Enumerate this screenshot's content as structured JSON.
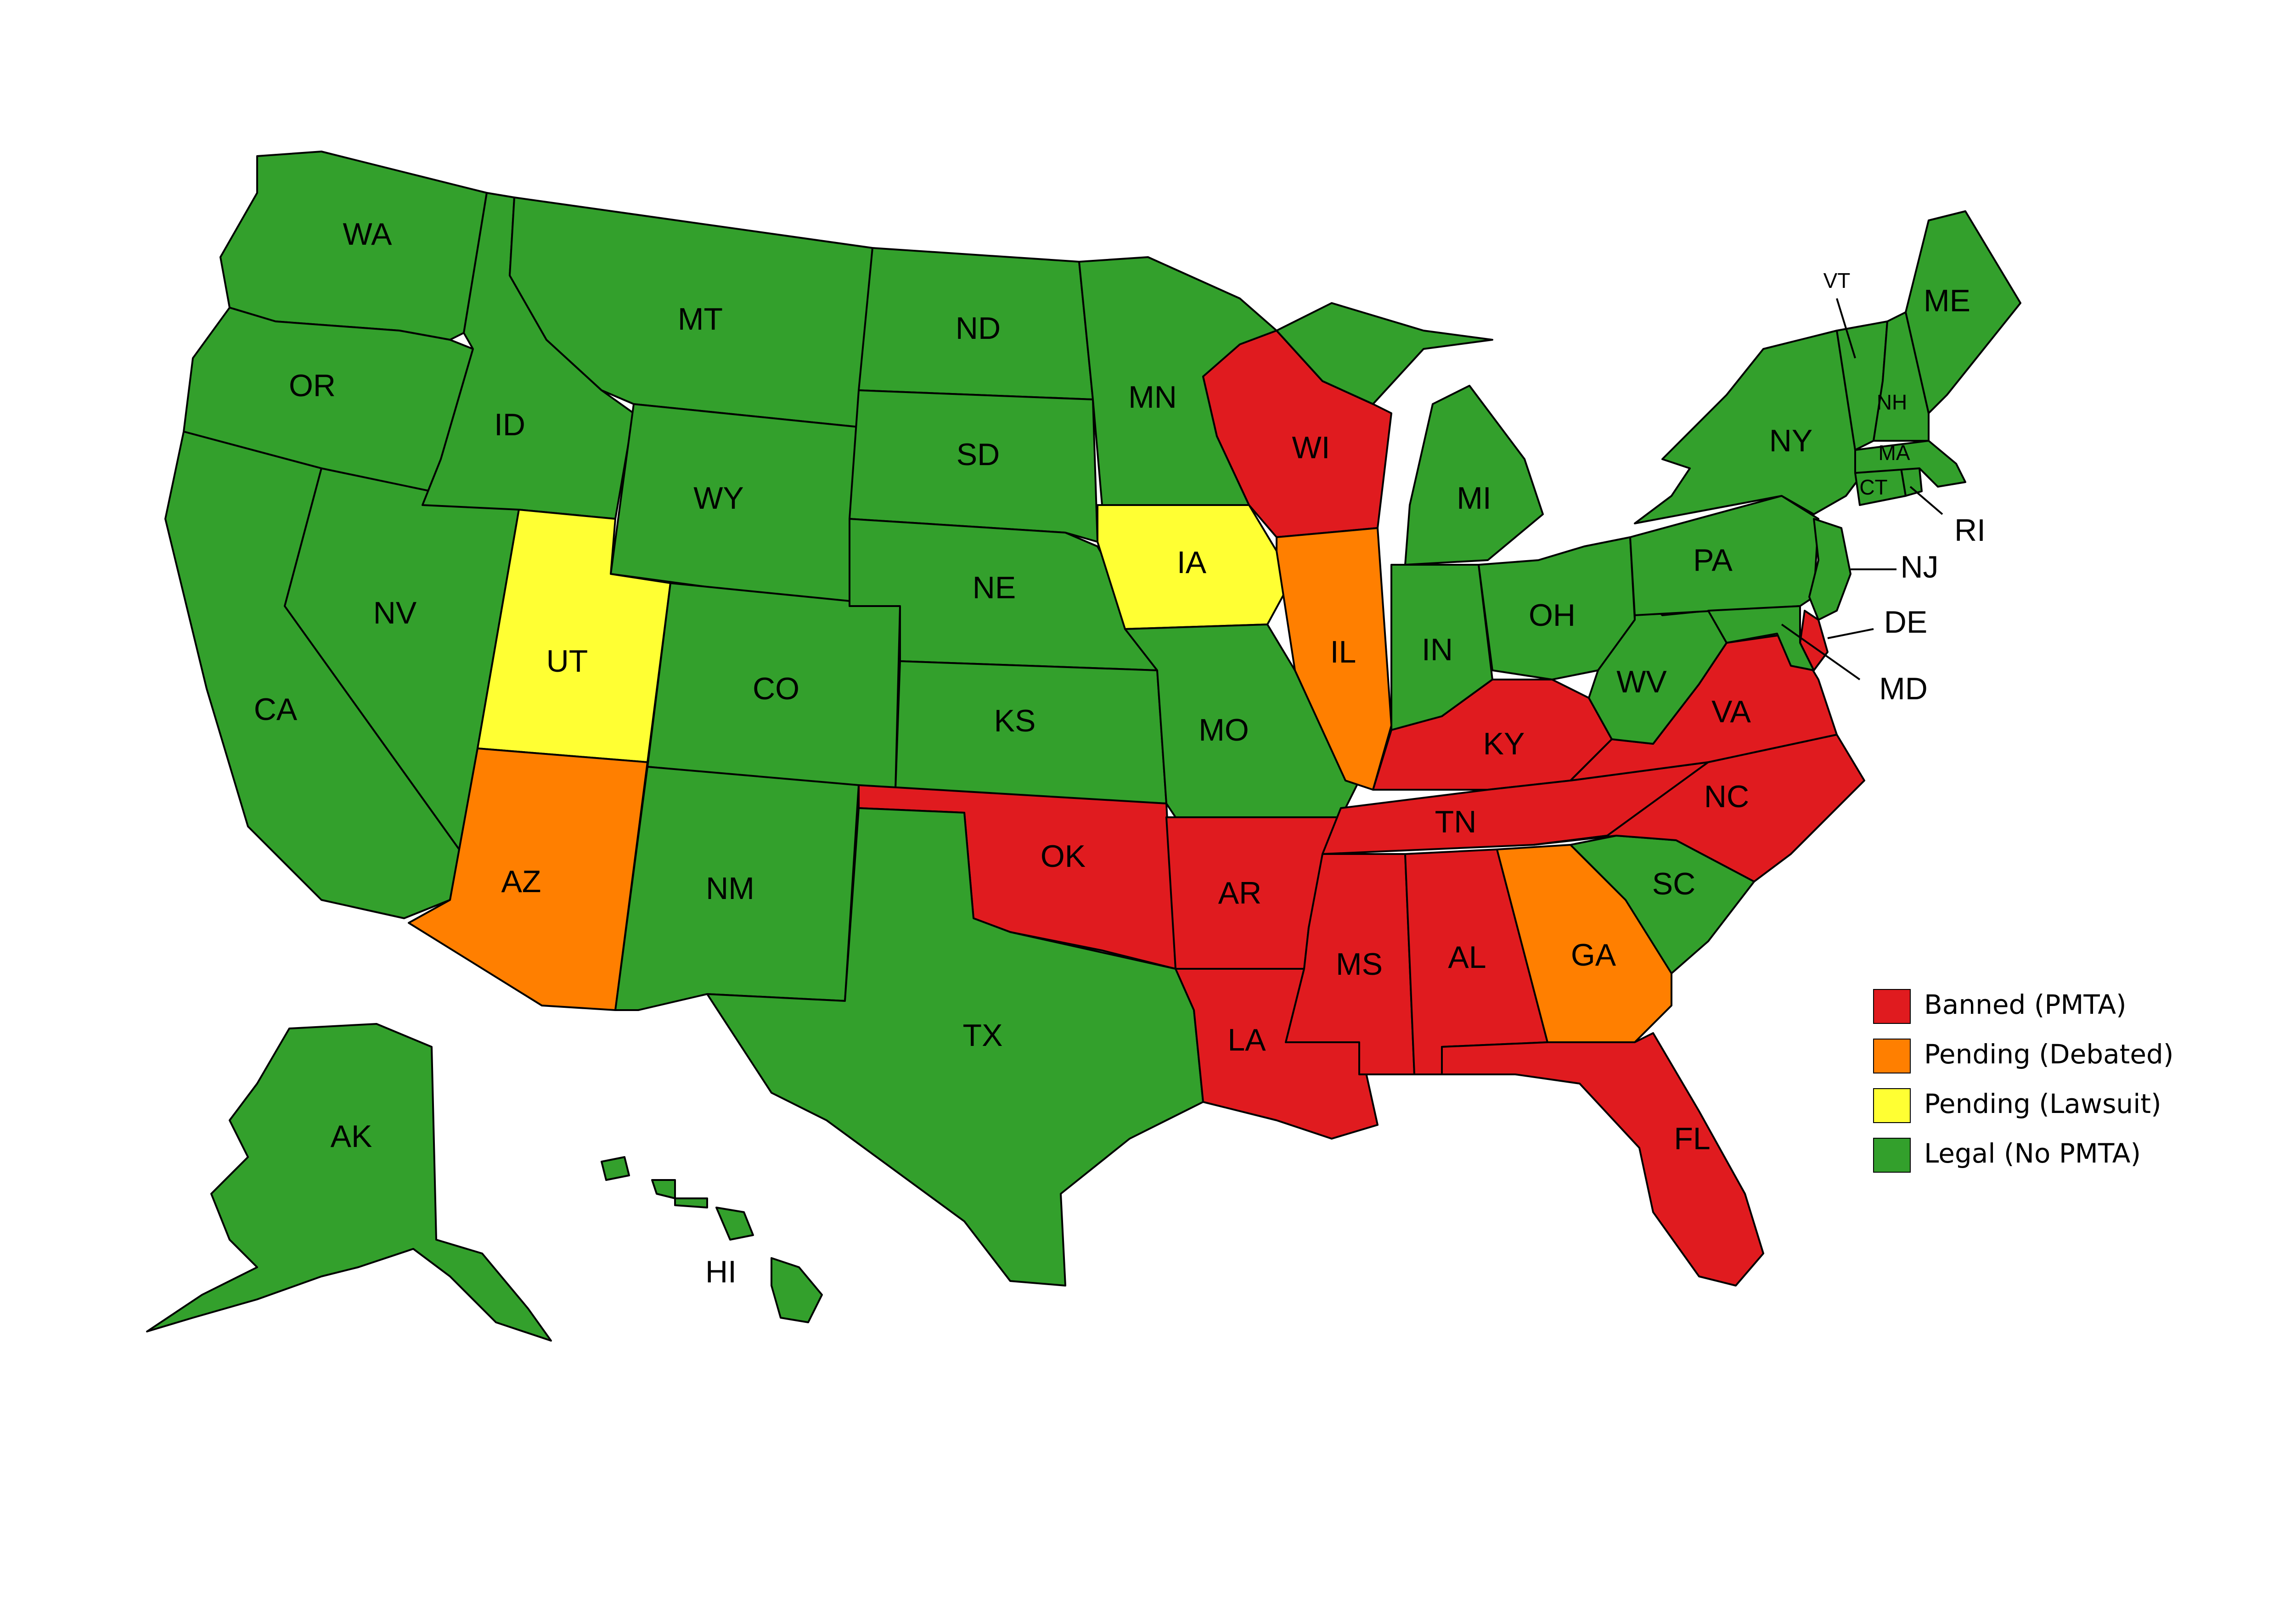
{
  "colors": {
    "banned": "#e01b1f",
    "debated": "#ff7f00",
    "lawsuit": "#ffff33",
    "legal": "#33a02c"
  },
  "legend": [
    {
      "key": "banned",
      "label": "Banned (PMTA)"
    },
    {
      "key": "debated",
      "label": "Pending (Debated)"
    },
    {
      "key": "lawsuit",
      "label": "Pending (Lawsuit)"
    },
    {
      "key": "legal",
      "label": "Legal (No PMTA)"
    }
  ],
  "states": {
    "WA": {
      "label": "WA",
      "status": "legal"
    },
    "OR": {
      "label": "OR",
      "status": "legal"
    },
    "CA": {
      "label": "CA",
      "status": "legal"
    },
    "NV": {
      "label": "NV",
      "status": "legal"
    },
    "ID": {
      "label": "ID",
      "status": "legal"
    },
    "MT": {
      "label": "MT",
      "status": "legal"
    },
    "WY": {
      "label": "WY",
      "status": "legal"
    },
    "UT": {
      "label": "UT",
      "status": "lawsuit"
    },
    "AZ": {
      "label": "AZ",
      "status": "debated"
    },
    "CO": {
      "label": "CO",
      "status": "legal"
    },
    "NM": {
      "label": "NM",
      "status": "legal"
    },
    "ND": {
      "label": "ND",
      "status": "legal"
    },
    "SD": {
      "label": "SD",
      "status": "legal"
    },
    "NE": {
      "label": "NE",
      "status": "legal"
    },
    "KS": {
      "label": "KS",
      "status": "legal"
    },
    "OK": {
      "label": "OK",
      "status": "banned"
    },
    "TX": {
      "label": "TX",
      "status": "legal"
    },
    "MN": {
      "label": "MN",
      "status": "legal"
    },
    "IA": {
      "label": "IA",
      "status": "lawsuit"
    },
    "MO": {
      "label": "MO",
      "status": "legal"
    },
    "AR": {
      "label": "AR",
      "status": "banned"
    },
    "LA": {
      "label": "LA",
      "status": "banned"
    },
    "WI": {
      "label": "WI",
      "status": "banned"
    },
    "IL": {
      "label": "IL",
      "status": "debated"
    },
    "MI": {
      "label": "MI",
      "status": "legal"
    },
    "IN": {
      "label": "IN",
      "status": "legal"
    },
    "OH": {
      "label": "OH",
      "status": "legal"
    },
    "KY": {
      "label": "KY",
      "status": "banned"
    },
    "TN": {
      "label": "TN",
      "status": "banned"
    },
    "MS": {
      "label": "MS",
      "status": "banned"
    },
    "AL": {
      "label": "AL",
      "status": "banned"
    },
    "GA": {
      "label": "GA",
      "status": "debated"
    },
    "FL": {
      "label": "FL",
      "status": "banned"
    },
    "SC": {
      "label": "SC",
      "status": "legal"
    },
    "NC": {
      "label": "NC",
      "status": "banned"
    },
    "VA": {
      "label": "VA",
      "status": "banned"
    },
    "WV": {
      "label": "WV",
      "status": "legal"
    },
    "PA": {
      "label": "PA",
      "status": "legal"
    },
    "NY": {
      "label": "NY",
      "status": "legal"
    },
    "NJ": {
      "label": "NJ",
      "status": "legal"
    },
    "DE": {
      "label": "DE",
      "status": "banned"
    },
    "MD": {
      "label": "MD",
      "status": "legal"
    },
    "CT": {
      "label": "CT",
      "status": "legal"
    },
    "RI": {
      "label": "RI",
      "status": "legal"
    },
    "MA": {
      "label": "MA",
      "status": "legal"
    },
    "VT": {
      "label": "VT",
      "status": "legal"
    },
    "NH": {
      "label": "NH",
      "status": "legal"
    },
    "ME": {
      "label": "ME",
      "status": "legal"
    },
    "AK": {
      "label": "AK",
      "status": "legal"
    },
    "HI": {
      "label": "HI",
      "status": "legal"
    }
  }
}
